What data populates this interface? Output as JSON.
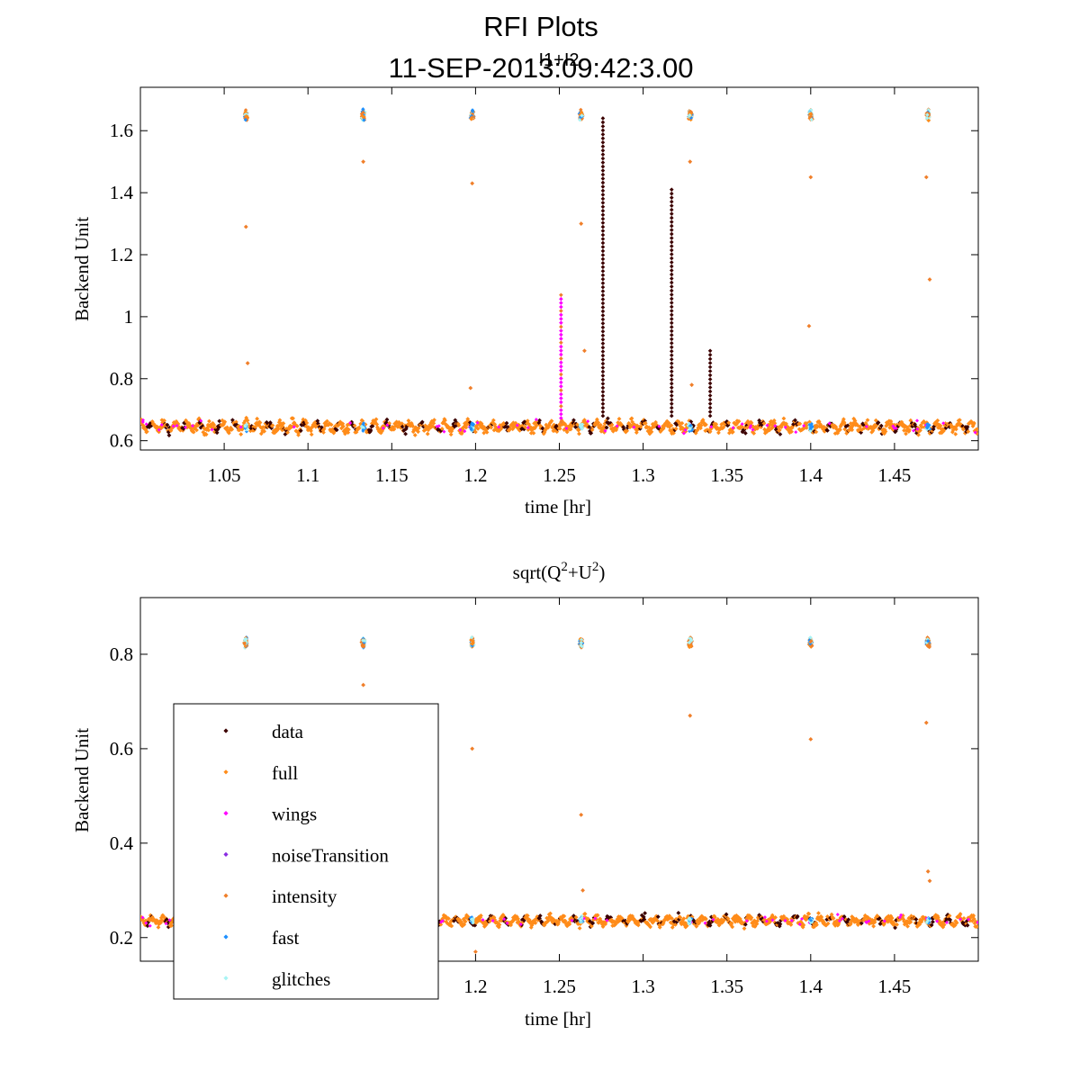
{
  "figure": {
    "title_line1": "RFI Plots",
    "title_line2": "11-SEP-2013:09:42:3.00",
    "overlap_text": "I1+I2"
  },
  "colors": {
    "data": "#3b0000",
    "full": "#ff8c1a",
    "wings": "#ff00ff",
    "noiseTransition": "#8a2be2",
    "intensity": "#f07f2a",
    "fast": "#1e90ff",
    "glitches": "#a8f4f4"
  },
  "legend": {
    "items": [
      {
        "key": "data",
        "label": "data",
        "color": "#3b0000"
      },
      {
        "key": "full",
        "label": "full",
        "color": "#ff8c1a"
      },
      {
        "key": "wings",
        "label": "wings",
        "color": "#ff00ff"
      },
      {
        "key": "noiseTransition",
        "label": "noiseTransition",
        "color": "#8a2be2"
      },
      {
        "key": "intensity",
        "label": "intensity",
        "color": "#f07f2a"
      },
      {
        "key": "fast",
        "label": "fast",
        "color": "#1e90ff"
      },
      {
        "key": "glitches",
        "label": "glitches",
        "color": "#a8f4f4"
      }
    ]
  },
  "chart_data": [
    {
      "type": "scatter",
      "title": "",
      "xlabel": "time [hr]",
      "ylabel": "Backend Unit",
      "xlim": [
        1.0,
        1.5
      ],
      "ylim": [
        0.57,
        1.74
      ],
      "x_ticks": [
        1.05,
        1.1,
        1.15,
        1.2,
        1.25,
        1.3,
        1.35,
        1.4,
        1.45
      ],
      "x_tick_labels": [
        "1.05",
        "1.1",
        "1.15",
        "1.2",
        "1.25",
        "1.3",
        "1.35",
        "1.4",
        "1.45"
      ],
      "y_ticks": [
        0.6,
        0.8,
        1.0,
        1.2,
        1.4,
        1.6
      ],
      "y_tick_labels": [
        "0.6",
        "0.8",
        "1",
        "1.2",
        "1.4",
        "1.6"
      ],
      "baseline": {
        "x_range": [
          1.0,
          1.5
        ],
        "y_center": 0.645,
        "spread": 0.035
      },
      "calibration_x": [
        1.063,
        1.133,
        1.198,
        1.263,
        1.328,
        1.4,
        1.47
      ],
      "calibration_y": 1.65,
      "spikes": [
        {
          "x": 1.251,
          "y_from": 0.66,
          "y_to": 1.07,
          "series": "wings"
        },
        {
          "x": 1.276,
          "y_from": 0.68,
          "y_to": 1.64,
          "series": "data"
        },
        {
          "x": 1.317,
          "y_from": 0.68,
          "y_to": 1.41,
          "series": "data"
        },
        {
          "x": 1.34,
          "y_from": 0.68,
          "y_to": 0.89,
          "series": "data"
        }
      ],
      "outliers": [
        {
          "x": 1.063,
          "y": 1.29
        },
        {
          "x": 1.064,
          "y": 0.85
        },
        {
          "x": 1.198,
          "y": 1.43
        },
        {
          "x": 1.197,
          "y": 0.77
        },
        {
          "x": 1.133,
          "y": 1.5
        },
        {
          "x": 1.263,
          "y": 1.3
        },
        {
          "x": 1.265,
          "y": 0.89
        },
        {
          "x": 1.328,
          "y": 1.5
        },
        {
          "x": 1.329,
          "y": 0.78
        },
        {
          "x": 1.4,
          "y": 1.45
        },
        {
          "x": 1.399,
          "y": 0.97
        },
        {
          "x": 1.469,
          "y": 1.45
        },
        {
          "x": 1.471,
          "y": 1.12
        }
      ]
    },
    {
      "type": "scatter",
      "title": "sqrt(Q2+U2)",
      "xlabel": "time [hr]",
      "ylabel": "Backend Unit",
      "xlim": [
        1.0,
        1.5
      ],
      "ylim": [
        0.15,
        0.92
      ],
      "x_ticks": [
        1.2,
        1.25,
        1.3,
        1.35,
        1.4,
        1.45
      ],
      "x_tick_labels": [
        "1.2",
        "1.25",
        "1.3",
        "1.35",
        "1.4",
        "1.45"
      ],
      "y_ticks": [
        0.2,
        0.4,
        0.6,
        0.8
      ],
      "y_tick_labels": [
        "0.2",
        "0.4",
        "0.6",
        "0.8"
      ],
      "baseline": {
        "x_range": [
          1.0,
          1.5
        ],
        "y_center": 0.236,
        "spread": 0.02
      },
      "calibration_x": [
        1.063,
        1.133,
        1.198,
        1.263,
        1.328,
        1.4,
        1.47
      ],
      "calibration_y": 0.825,
      "spikes": [],
      "outliers": [
        {
          "x": 1.133,
          "y": 0.735
        },
        {
          "x": 1.198,
          "y": 0.6
        },
        {
          "x": 1.263,
          "y": 0.46
        },
        {
          "x": 1.264,
          "y": 0.3
        },
        {
          "x": 1.328,
          "y": 0.67
        },
        {
          "x": 1.4,
          "y": 0.62
        },
        {
          "x": 1.469,
          "y": 0.655
        },
        {
          "x": 1.47,
          "y": 0.34
        },
        {
          "x": 1.471,
          "y": 0.32
        },
        {
          "x": 1.2,
          "y": 0.17
        }
      ]
    }
  ]
}
